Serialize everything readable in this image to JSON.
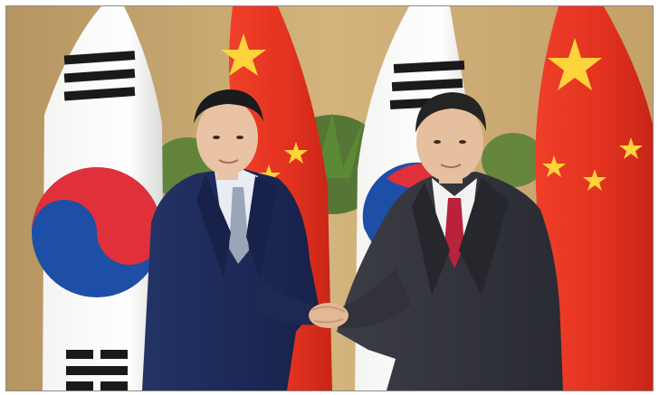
{
  "photo": {
    "alt": "",
    "colors": {
      "wall": "#c9aa72",
      "flag_china_red": "#e8321f",
      "flag_china_star": "#ffd43a",
      "taeguk_red": "#e0303a",
      "taeguk_blue": "#1e4fa6",
      "suit_navy": "#1e2a55",
      "suit_gray": "#34353d",
      "tie_red": "#b8223b"
    }
  }
}
